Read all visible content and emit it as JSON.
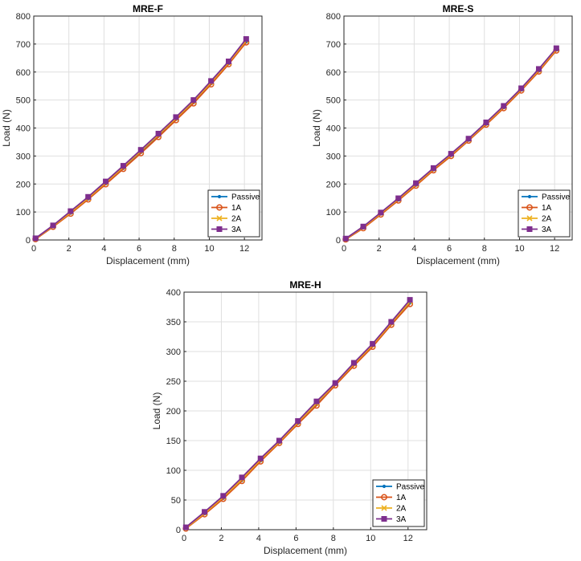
{
  "chart_data": [
    {
      "type": "line",
      "title": "MRE-F",
      "xlabel": "Displacement (mm)",
      "ylabel": "Load (N)",
      "xlim": [
        0,
        13
      ],
      "ylim": [
        0,
        800
      ],
      "xticks": [
        0,
        2,
        4,
        6,
        8,
        10,
        12
      ],
      "yticks": [
        0,
        100,
        200,
        300,
        400,
        500,
        600,
        700,
        800
      ],
      "grid": true,
      "legend_position": "bottom-right",
      "x": [
        0.1,
        1.1,
        2.1,
        3.1,
        4.1,
        5.1,
        6.1,
        7.1,
        8.1,
        9.1,
        10.1,
        11.1,
        12.1
      ],
      "series": [
        {
          "name": "Passive",
          "color": "#0072BD",
          "marker": "point",
          "values": [
            4,
            48,
            96,
            147,
            201,
            256,
            313,
            371,
            431,
            491,
            559,
            630,
            708
          ]
        },
        {
          "name": "1A",
          "color": "#D95319",
          "marker": "circle",
          "values": [
            3,
            47,
            94,
            145,
            199,
            254,
            310,
            368,
            428,
            488,
            556,
            628,
            706
          ]
        },
        {
          "name": "2A",
          "color": "#EDB120",
          "marker": "x",
          "values": [
            5,
            50,
            99,
            150,
            205,
            261,
            318,
            376,
            435,
            496,
            563,
            634,
            713
          ]
        },
        {
          "name": "3A",
          "color": "#7E2F8E",
          "marker": "square",
          "values": [
            6,
            52,
            103,
            154,
            209,
            265,
            322,
            380,
            439,
            500,
            568,
            638,
            718
          ]
        }
      ]
    },
    {
      "type": "line",
      "title": "MRE-S",
      "xlabel": "Displacement (mm)",
      "ylabel": "Load (N)",
      "xlim": [
        0,
        13
      ],
      "ylim": [
        0,
        800
      ],
      "xticks": [
        0,
        2,
        4,
        6,
        8,
        10,
        12
      ],
      "yticks": [
        0,
        100,
        200,
        300,
        400,
        500,
        600,
        700,
        800
      ],
      "grid": true,
      "legend_position": "bottom-right",
      "x": [
        0.1,
        1.1,
        2.1,
        3.1,
        4.1,
        5.1,
        6.1,
        7.1,
        8.1,
        9.1,
        10.1,
        11.1,
        12.1
      ],
      "series": [
        {
          "name": "Passive",
          "color": "#0072BD",
          "marker": "point",
          "values": [
            3,
            44,
            93,
            143,
            196,
            251,
            302,
            357,
            414,
            473,
            536,
            604,
            679
          ]
        },
        {
          "name": "1A",
          "color": "#D95319",
          "marker": "circle",
          "values": [
            2,
            42,
            91,
            141,
            194,
            249,
            300,
            355,
            412,
            471,
            534,
            602,
            677
          ]
        },
        {
          "name": "2A",
          "color": "#EDB120",
          "marker": "x",
          "values": [
            4,
            46,
            95,
            146,
            199,
            254,
            305,
            359,
            417,
            476,
            539,
            607,
            682
          ]
        },
        {
          "name": "3A",
          "color": "#7E2F8E",
          "marker": "square",
          "values": [
            5,
            48,
            98,
            149,
            203,
            257,
            308,
            362,
            420,
            479,
            542,
            611,
            685
          ]
        }
      ]
    },
    {
      "type": "line",
      "title": "MRE-H",
      "xlabel": "Displacement (mm)",
      "ylabel": "Load (N)",
      "xlim": [
        0,
        13
      ],
      "ylim": [
        0,
        400
      ],
      "xticks": [
        0,
        2,
        4,
        6,
        8,
        10,
        12
      ],
      "yticks": [
        0,
        50,
        100,
        150,
        200,
        250,
        300,
        350,
        400
      ],
      "grid": true,
      "legend_position": "bottom-right",
      "x": [
        0.1,
        1.1,
        2.1,
        3.1,
        4.1,
        5.1,
        6.1,
        7.1,
        8.1,
        9.1,
        10.1,
        11.1,
        12.1
      ],
      "series": [
        {
          "name": "Passive",
          "color": "#0072BD",
          "marker": "point",
          "values": [
            3,
            27,
            53,
            83,
            116,
            147,
            179,
            211,
            245,
            278,
            310,
            347,
            382
          ]
        },
        {
          "name": "1A",
          "color": "#D95319",
          "marker": "circle",
          "values": [
            2,
            26,
            52,
            82,
            115,
            146,
            178,
            209,
            243,
            276,
            308,
            345,
            380
          ]
        },
        {
          "name": "2A",
          "color": "#EDB120",
          "marker": "x",
          "values": [
            3,
            28,
            55,
            85,
            118,
            148,
            181,
            213,
            246,
            279,
            311,
            348,
            384
          ]
        },
        {
          "name": "3A",
          "color": "#7E2F8E",
          "marker": "square",
          "values": [
            4,
            30,
            57,
            88,
            120,
            150,
            183,
            216,
            247,
            281,
            313,
            350,
            387
          ]
        }
      ]
    }
  ]
}
